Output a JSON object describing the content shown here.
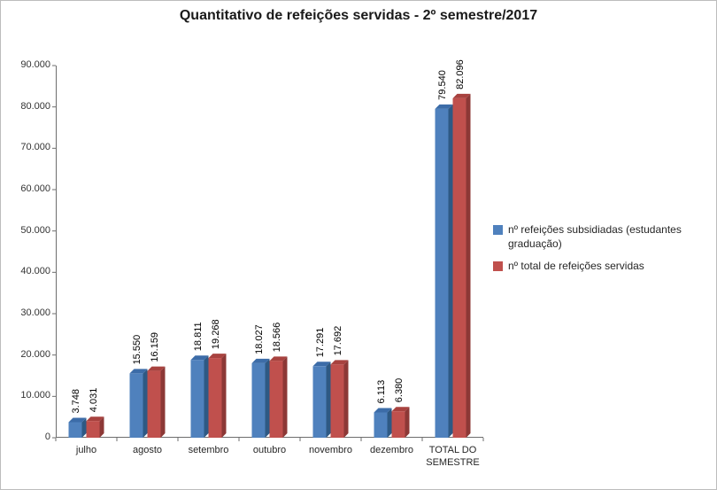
{
  "chart_data": {
    "type": "bar",
    "title": "Quantitativo de refeições servidas - 2º semestre/2017",
    "categories": [
      "julho",
      "agosto",
      "setembro",
      "outubro",
      "novembro",
      "dezembro",
      "TOTAL DO SEMESTRE"
    ],
    "series": [
      {
        "name": "nº refeições subsidiadas (estudantes graduação)",
        "color": "#4f81bd",
        "side_color": "#2e5984",
        "top_color": "#3c6ca8",
        "values": [
          3748,
          15550,
          18811,
          18027,
          17291,
          6113,
          79540
        ],
        "labels": [
          "3.748",
          "15.550",
          "18.811",
          "18.027",
          "17.291",
          "6.113",
          "79.540"
        ]
      },
      {
        "name": "nº total de refeições servidas",
        "color": "#c0504d",
        "side_color": "#8c3836",
        "top_color": "#a8423f",
        "values": [
          4031,
          16159,
          19268,
          18566,
          17692,
          6380,
          82096
        ],
        "labels": [
          "4.031",
          "16.159",
          "19.268",
          "18.566",
          "17.692",
          "6.380",
          "82.096"
        ]
      }
    ],
    "y_axis": {
      "min": 0,
      "max": 90000,
      "step": 10000,
      "tick_labels": [
        "0",
        "10.000",
        "20.000",
        "30.000",
        "40.000",
        "50.000",
        "60.000",
        "70.000",
        "80.000",
        "90.000"
      ]
    },
    "axis_color": "#6e6e6e",
    "legend_position": "right",
    "grid": false
  }
}
